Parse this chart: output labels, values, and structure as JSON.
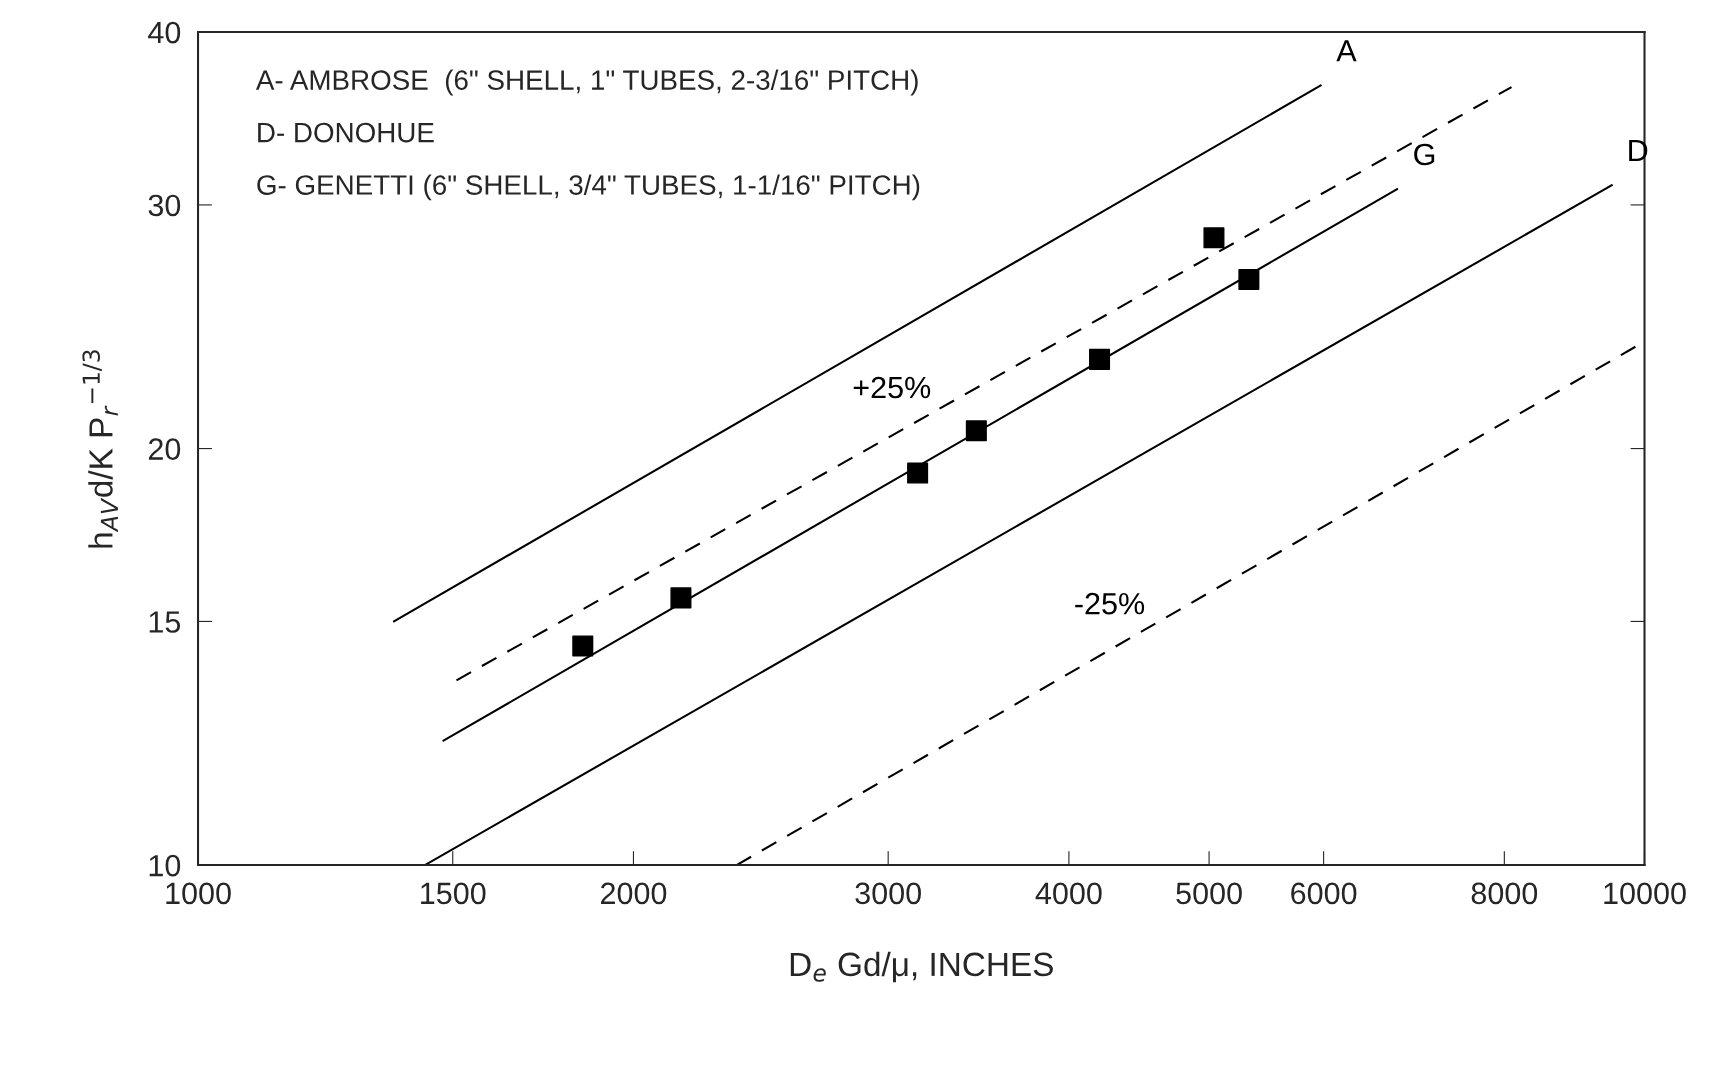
{
  "chart_data": {
    "type": "line",
    "log": "xy",
    "xlabel": "D$_{e}$ Gd/μ, INCHES",
    "ylabel": "h$_{AV}$d/K P$_{r}$$^{−1/3}$",
    "xlim": [
      1000,
      10000
    ],
    "ylim": [
      10,
      40
    ],
    "xticks": [
      1000,
      1500,
      2000,
      3000,
      4000,
      5000,
      6000,
      8000,
      10000
    ],
    "yticks": [
      10,
      15,
      20,
      30,
      40
    ],
    "grid": false,
    "legend": false,
    "series": [
      {
        "name": "A",
        "color": "#000000",
        "line_style": "solid",
        "x": [
          1366,
          5973
        ],
        "values": [
          15.0,
          36.6
        ]
      },
      {
        "name": "+25%",
        "color": "#000000",
        "line_style": "dashed",
        "x": [
          1509,
          8092
        ],
        "values": [
          13.6,
          36.5
        ]
      },
      {
        "name": "G",
        "color": "#000000",
        "line_style": "solid",
        "x": [
          1478,
          6745
        ],
        "values": [
          12.3,
          30.8
        ]
      },
      {
        "name": "D",
        "color": "#000000",
        "line_style": "solid",
        "x": [
          1435,
          9494
        ],
        "values": [
          10.0,
          31.0
        ]
      },
      {
        "name": "-25%",
        "color": "#000000",
        "line_style": "dashed",
        "x": [
          2357,
          10000
        ],
        "values": [
          10.0,
          23.9
        ]
      },
      {
        "type": "scatter",
        "color": "#000000",
        "marker": "square",
        "x": [
          1845,
          2157,
          3144,
          3452,
          4200,
          5039,
          5327
        ],
        "values": [
          14.4,
          15.6,
          19.2,
          20.6,
          23.2,
          28.4,
          26.5
        ]
      }
    ],
    "annotations": [
      "A- AMBROSE  (6\" SHELL, 1\" TUBES, 2-3/16\" PITCH)",
      "D- DONOHUE",
      "G- GENETTI (6\" SHELL, 3/4\" TUBES, 1-1/16\" PITCH)"
    ]
  }
}
